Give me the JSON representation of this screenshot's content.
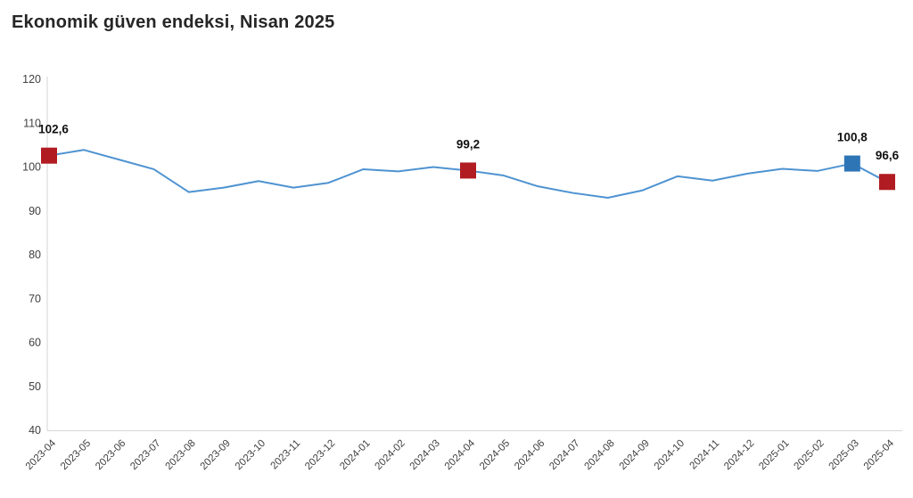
{
  "title": "Ekonomik güven endeksi, Nisan 2025",
  "colors": {
    "line": "#4E93D1",
    "marker_red": "#B11C22",
    "marker_blue": "#2E75B6",
    "axis_line": "#D6D6D6",
    "tick_text": "#404040",
    "title_text": "#262626",
    "data_label_text": "#111111"
  },
  "chart_data": {
    "type": "line",
    "title": "Ekonomik güven endeksi, Nisan 2025",
    "x": [
      "2023-04",
      "2023-05",
      "2023-06",
      "2023-07",
      "2023-08",
      "2023-09",
      "2023-10",
      "2023-11",
      "2023-12",
      "2024-01",
      "2024-02",
      "2024-03",
      "2024-04",
      "2024-05",
      "2024-06",
      "2024-07",
      "2024-08",
      "2024-09",
      "2024-10",
      "2024-11",
      "2024-12",
      "2025-01",
      "2025-02",
      "2025-03",
      "2025-04"
    ],
    "series": [
      {
        "name": "Ekonomik güven endeksi",
        "values": [
          102.6,
          103.9,
          101.7,
          99.5,
          94.3,
          95.3,
          96.8,
          95.3,
          96.4,
          99.5,
          99.0,
          100.0,
          99.2,
          98.1,
          95.6,
          94.1,
          93.0,
          94.7,
          97.9,
          96.9,
          98.5,
          99.6,
          99.1,
          100.8,
          96.6
        ]
      }
    ],
    "ylim": [
      40,
      120
    ],
    "yticks": [
      40,
      50,
      60,
      70,
      80,
      90,
      100,
      110,
      120
    ],
    "grid": false,
    "legend": false,
    "xlabel": "",
    "ylabel": "",
    "line_color": "#4E93D1",
    "annotations": [
      {
        "x": "2023-04",
        "value": 102.6,
        "label": "102,6",
        "marker_color": "#B11C22"
      },
      {
        "x": "2024-04",
        "value": 99.2,
        "label": "99,2",
        "marker_color": "#B11C22"
      },
      {
        "x": "2025-03",
        "value": 100.8,
        "label": "100,8",
        "marker_color": "#2E75B6"
      },
      {
        "x": "2025-04",
        "value": 96.6,
        "label": "96,6",
        "marker_color": "#B11C22"
      }
    ]
  }
}
